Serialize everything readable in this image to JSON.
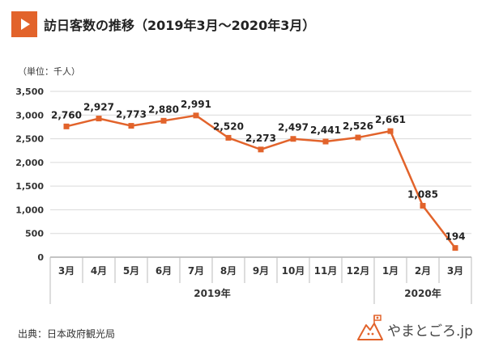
{
  "header": {
    "title": "訪日客数の推移（2019年3月〜2020年3月）"
  },
  "unit_label": "（単位：千人）",
  "source": "出典：日本政府観光局",
  "logo": {
    "text": "やまとごろ.jp",
    "icon": "mountain-flag-mascot-icon"
  },
  "colors": {
    "accent": "#e2632b",
    "line": "#e2632b",
    "grid": "#d9d9d9"
  },
  "chart_data": {
    "type": "line",
    "categories": [
      "3月",
      "4月",
      "5月",
      "6月",
      "7月",
      "8月",
      "9月",
      "10月",
      "11月",
      "12月",
      "1月",
      "2月",
      "3月"
    ],
    "values": [
      2760,
      2927,
      2773,
      2880,
      2991,
      2520,
      2273,
      2497,
      2441,
      2526,
      2661,
      1085,
      194
    ],
    "data_labels": [
      "2,760",
      "2,927",
      "2,773",
      "2,880",
      "2,991",
      "2,520",
      "2,273",
      "2,497",
      "2,441",
      "2,526",
      "2,661",
      "1,085",
      "194"
    ],
    "y_ticks": [
      0,
      500,
      1000,
      1500,
      2000,
      2500,
      3000,
      3500
    ],
    "y_tick_labels": [
      "0",
      "500",
      "1,000",
      "1,500",
      "2,000",
      "2,500",
      "3,000",
      "3,500"
    ],
    "ylim": [
      0,
      3500
    ],
    "year_groups": [
      {
        "label": "2019年",
        "start": 0,
        "end": 9
      },
      {
        "label": "2020年",
        "start": 10,
        "end": 12
      }
    ],
    "grid": true,
    "marker": "square"
  }
}
